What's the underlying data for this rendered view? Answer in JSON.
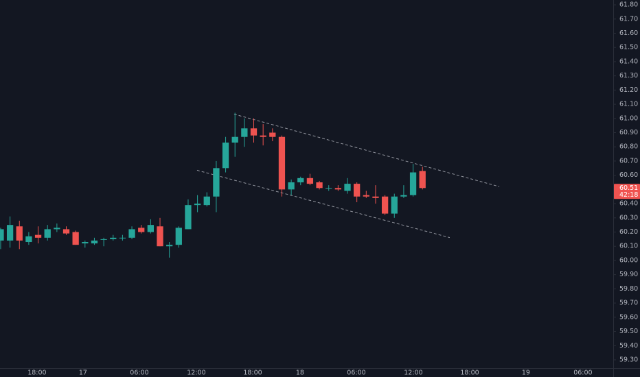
{
  "chart_data": {
    "type": "candlestick",
    "x": [
      0,
      1,
      2,
      3,
      4,
      5,
      6,
      7,
      8,
      9,
      10,
      11,
      12,
      13,
      14,
      15,
      16,
      17,
      18,
      19,
      20,
      21,
      22,
      23,
      24,
      25,
      26,
      27,
      28,
      29,
      30,
      31,
      32,
      33,
      34,
      35,
      36,
      37,
      38,
      39,
      40,
      41,
      42,
      43,
      44,
      45
    ],
    "open": [
      60.14,
      60.14,
      60.24,
      60.13,
      60.18,
      60.16,
      60.22,
      60.22,
      60.2,
      60.12,
      60.12,
      60.15,
      60.15,
      60.16,
      60.16,
      60.23,
      60.2,
      60.24,
      60.1,
      60.11,
      60.22,
      60.39,
      60.39,
      60.45,
      60.65,
      60.83,
      60.87,
      60.93,
      60.88,
      60.9,
      60.87,
      60.5,
      60.55,
      60.58,
      60.55,
      60.51,
      60.51,
      60.49,
      60.54,
      60.46,
      60.45,
      60.45,
      60.33,
      60.45,
      60.46,
      60.63
    ],
    "high": [
      60.23,
      60.31,
      60.28,
      60.2,
      60.24,
      60.25,
      60.26,
      60.24,
      60.21,
      60.14,
      60.16,
      60.16,
      60.18,
      60.18,
      60.24,
      60.25,
      60.29,
      60.3,
      60.13,
      60.24,
      60.43,
      60.46,
      60.48,
      60.7,
      60.87,
      61.04,
      61.0,
      61.0,
      60.96,
      60.93,
      60.88,
      60.57,
      60.59,
      60.61,
      60.56,
      60.53,
      60.53,
      60.58,
      60.55,
      60.49,
      60.53,
      60.46,
      60.47,
      60.53,
      60.68,
      60.66
    ],
    "low": [
      60.08,
      60.09,
      60.08,
      60.11,
      60.12,
      60.14,
      60.2,
      60.18,
      60.11,
      60.09,
      60.11,
      60.1,
      60.14,
      60.14,
      60.15,
      60.19,
      60.19,
      60.1,
      60.02,
      60.09,
      60.22,
      60.34,
      60.38,
      60.34,
      60.62,
      60.73,
      60.8,
      60.83,
      60.81,
      60.84,
      60.45,
      60.46,
      60.53,
      60.53,
      60.5,
      60.49,
      60.49,
      60.47,
      60.41,
      60.44,
      60.4,
      60.32,
      60.3,
      60.44,
      60.45,
      60.5
    ],
    "close": [
      60.22,
      60.25,
      60.14,
      60.17,
      60.16,
      60.22,
      60.23,
      60.19,
      60.11,
      60.13,
      60.14,
      60.15,
      60.16,
      60.16,
      60.22,
      60.2,
      60.25,
      60.1,
      60.11,
      60.23,
      60.39,
      60.4,
      60.45,
      60.65,
      60.83,
      60.87,
      60.93,
      60.88,
      60.87,
      60.87,
      60.5,
      60.55,
      60.58,
      60.54,
      60.51,
      60.51,
      60.5,
      60.54,
      60.45,
      60.45,
      60.44,
      60.33,
      60.45,
      60.46,
      60.62,
      60.51
    ],
    "up_color": "#26a69a",
    "down_color": "#ef5350",
    "xlim": [
      -0.07,
      65.35
    ],
    "xticks": [
      {
        "value": 3.88,
        "label": "18:00"
      },
      {
        "value": 8.79,
        "label": "17"
      },
      {
        "value": 14.8,
        "label": "06:00"
      },
      {
        "value": 20.88,
        "label": "12:00"
      },
      {
        "value": 26.89,
        "label": "18:00"
      },
      {
        "value": 31.94,
        "label": "18"
      },
      {
        "value": 37.95,
        "label": "06:00"
      },
      {
        "value": 44.03,
        "label": "12:00"
      },
      {
        "value": 50.04,
        "label": "18:00"
      },
      {
        "value": 56.04,
        "label": "19"
      },
      {
        "value": 62.12,
        "label": "06:00"
      }
    ],
    "ylim": [
      59.242,
      61.834
    ],
    "yticks": [
      {
        "value": 59.3,
        "label": "59.30"
      },
      {
        "value": 59.4,
        "label": "59.40"
      },
      {
        "value": 59.5,
        "label": "59.50"
      },
      {
        "value": 59.6,
        "label": "59.60"
      },
      {
        "value": 59.7,
        "label": "59.70"
      },
      {
        "value": 59.8,
        "label": "59.80"
      },
      {
        "value": 59.9,
        "label": "59.90"
      },
      {
        "value": 60.0,
        "label": "60.00"
      },
      {
        "value": 60.1,
        "label": "60.10"
      },
      {
        "value": 60.2,
        "label": "60.20"
      },
      {
        "value": 60.3,
        "label": "60.30"
      },
      {
        "value": 60.4,
        "label": "60.40"
      },
      {
        "value": 60.6,
        "label": "60.60"
      },
      {
        "value": 60.7,
        "label": "60.70"
      },
      {
        "value": 60.8,
        "label": "60.80"
      },
      {
        "value": 60.9,
        "label": "60.90"
      },
      {
        "value": 61.0,
        "label": "61.00"
      },
      {
        "value": 61.1,
        "label": "61.10"
      },
      {
        "value": 61.2,
        "label": "61.20"
      },
      {
        "value": 61.3,
        "label": "61.30"
      },
      {
        "value": 61.4,
        "label": "61.40"
      },
      {
        "value": 61.5,
        "label": "61.50"
      },
      {
        "value": 61.6,
        "label": "61.60"
      },
      {
        "value": 61.7,
        "label": "61.70"
      },
      {
        "value": 61.8,
        "label": "61.80"
      }
    ],
    "last_price": {
      "value": 60.51,
      "label": "60.51"
    },
    "countdown": "42:18",
    "trend_lines": [
      {
        "x": [
          24.9,
          53.19
        ],
        "y": [
          61.03,
          60.52
        ]
      },
      {
        "x": [
          20.95,
          47.91
        ],
        "y": [
          60.635,
          60.161
        ]
      }
    ]
  }
}
